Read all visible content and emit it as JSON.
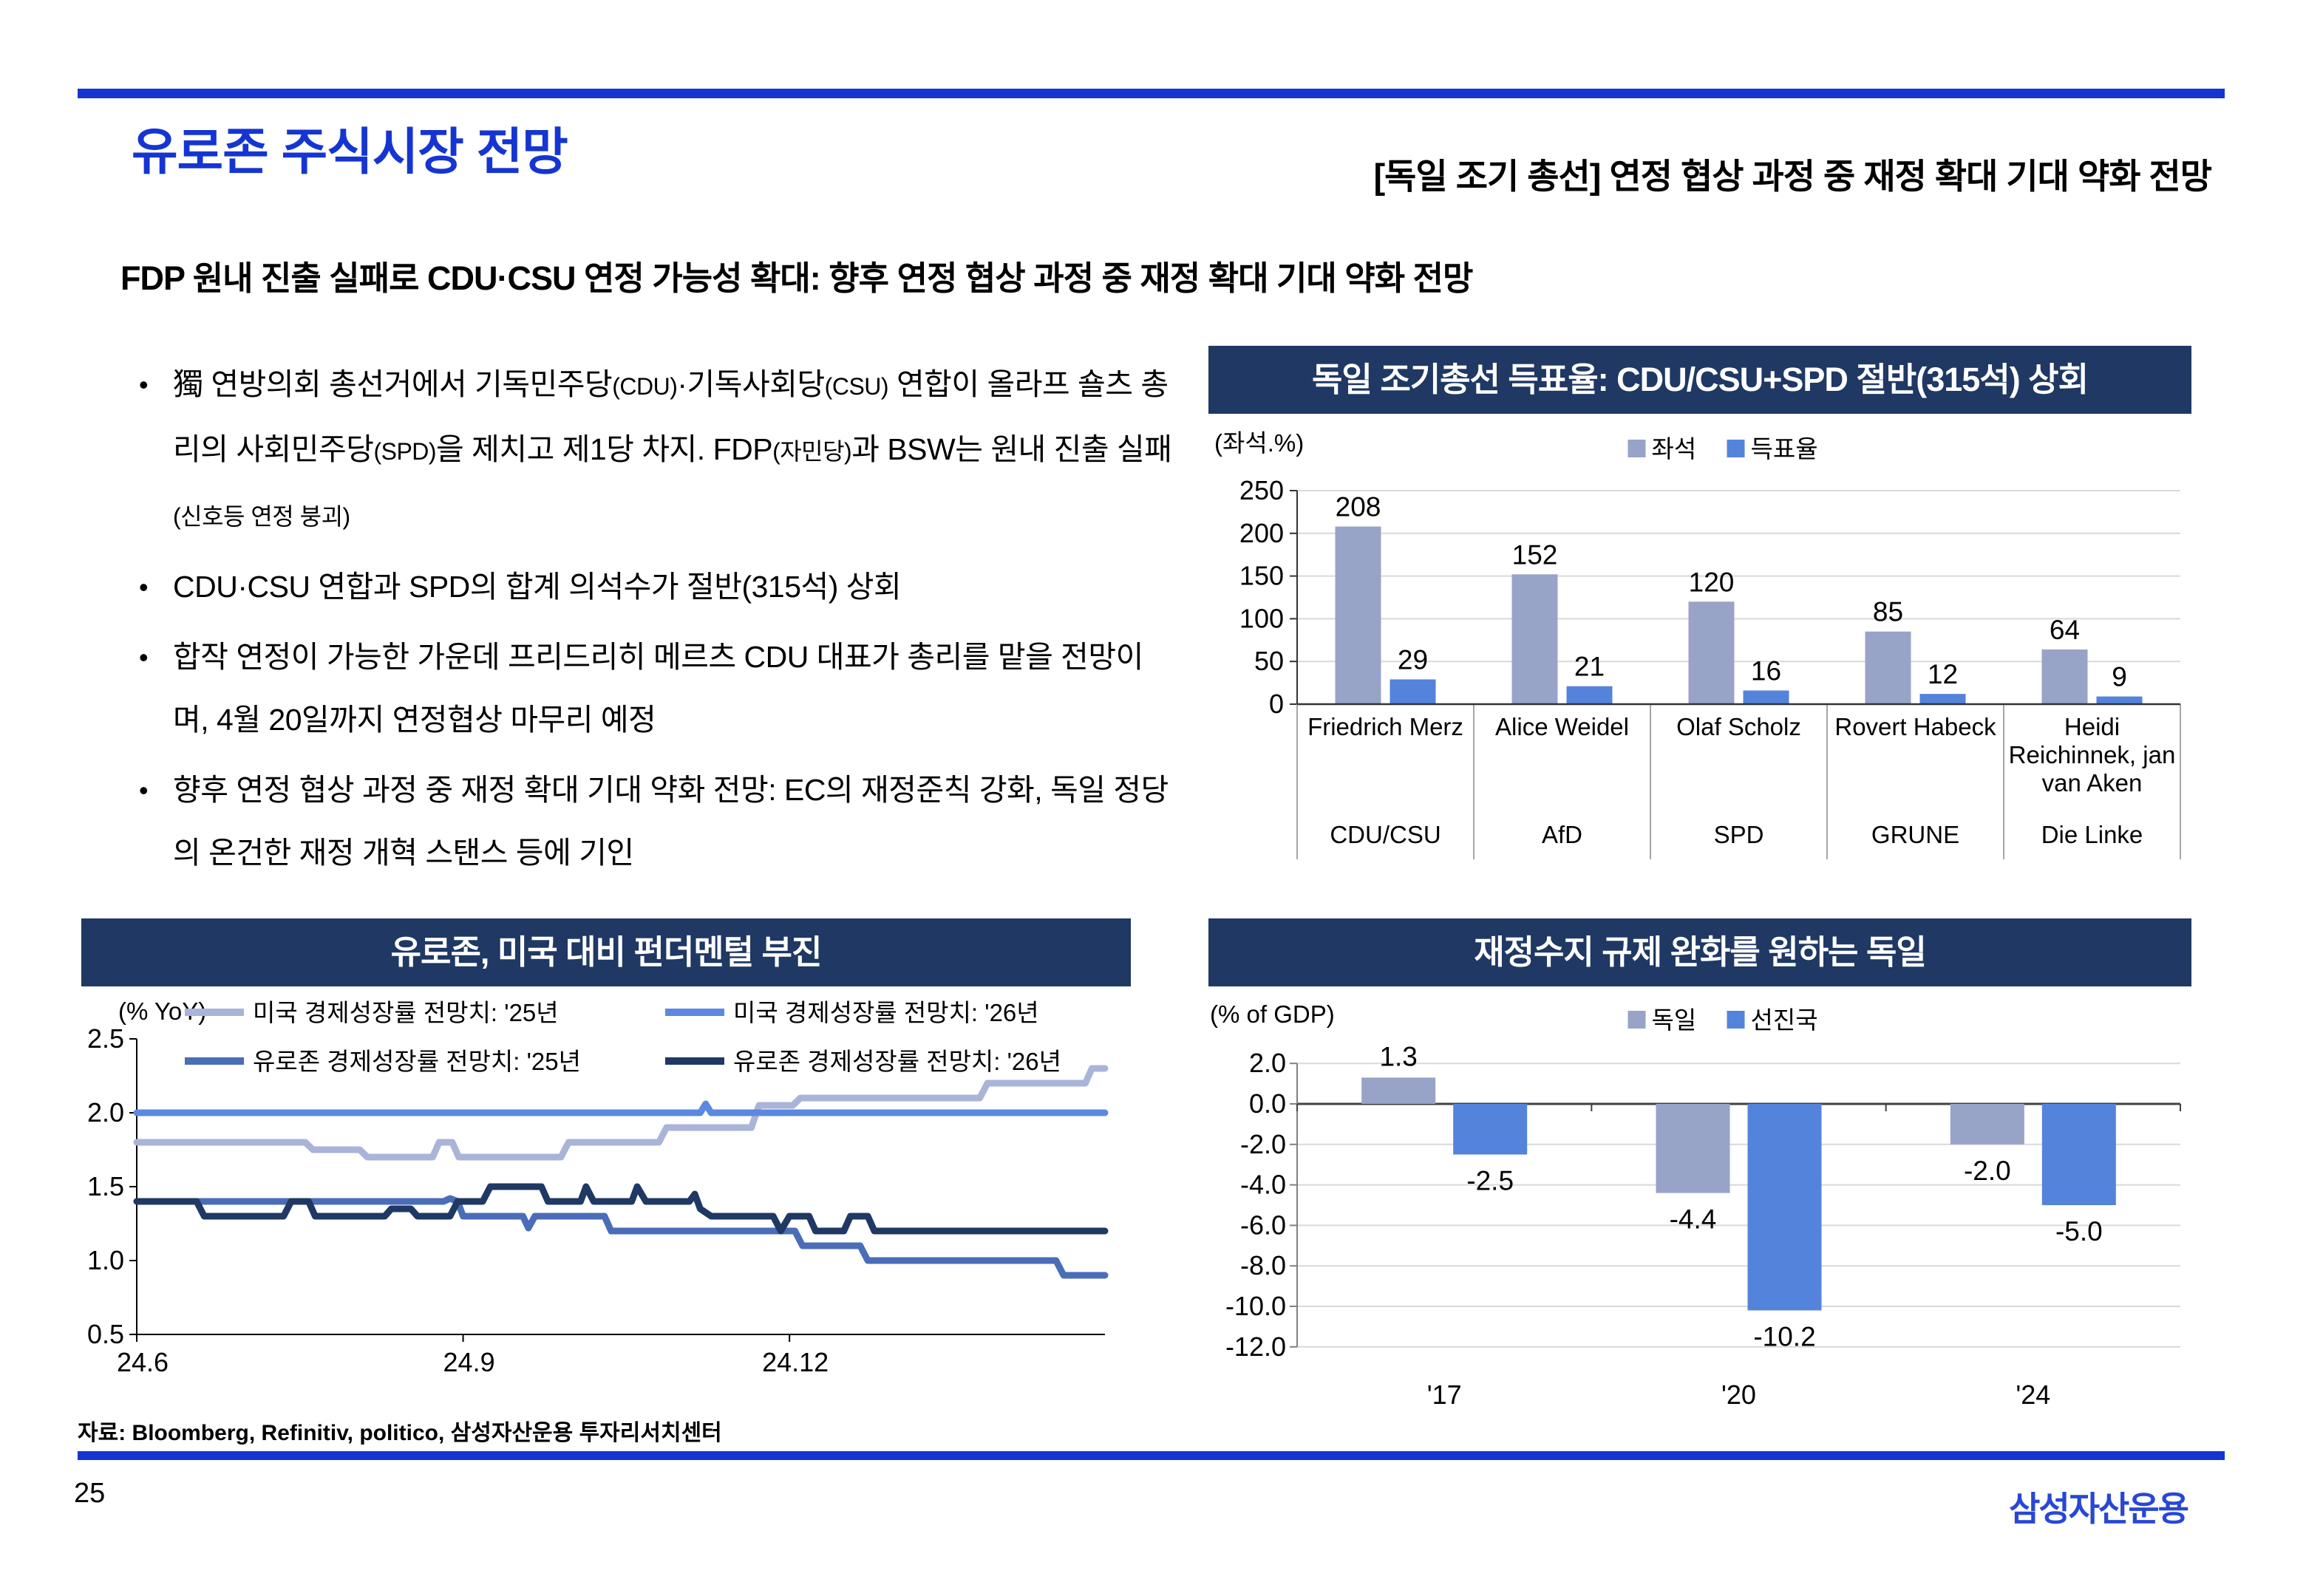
{
  "page": {
    "title": "유로존 주식시장 전망",
    "right_header": "[독일 조기 총선] 연정 협상 과정 중 재정 확대 기대 약화 전망",
    "subtitle": "FDP 원내 진출 실패로 CDU·CSU 연정 가능성 확대: 향후 연정 협상 과정 중 재정 확대 기대 약화 전망",
    "source": "자료: Bloomberg, Refinitiv, politico, 삼성자산운용 투자리서치센터",
    "page_number": "25",
    "logo": "삼성자산운용"
  },
  "colors": {
    "brand_blue": "#1535D2",
    "navy_header": "#1F3864",
    "bar_gray": "#98A3C8",
    "bar_blue": "#5483DB",
    "line_lavender": "#A9B4D8",
    "line_blue": "#5B88E0",
    "line_slate": "#4A6DB8",
    "line_navy": "#1F3864",
    "grid": "#D9D9D9",
    "axis_dark": "#333333",
    "table_border": "#A6A6A6",
    "logo_blue": "#2847D6"
  },
  "bullets": [
    {
      "segments": [
        {
          "text": "獨 연방의회 총선거에서 기독민주당",
          "small": false
        },
        {
          "text": "(CDU)",
          "small": true
        },
        {
          "text": "·기독사회당",
          "small": false
        },
        {
          "text": "(CSU)",
          "small": true
        },
        {
          "text": " 연합이 올라프 숄츠 총리의 사회민주당",
          "small": false
        },
        {
          "text": "(SPD)",
          "small": true
        },
        {
          "text": "을 제치고 제1당 차지. FDP",
          "small": false
        },
        {
          "text": "(자민당)",
          "small": true
        },
        {
          "text": "과 BSW는 원내 진출 실패",
          "small": false
        },
        {
          "text": "(신호등 연정 붕괴)",
          "small": true
        }
      ]
    },
    {
      "segments": [
        {
          "text": "CDU·CSU 연합과 SPD의 합계 의석수가 절반(315석) 상회",
          "small": false
        }
      ]
    },
    {
      "segments": [
        {
          "text": "합작 연정이 가능한 가운데 프리드리히 메르츠 CDU 대표가 총리를 맡을 전망이며, 4월 20일까지 연정협상 마무리 예정",
          "small": false
        }
      ]
    },
    {
      "segments": [
        {
          "text": "향후 연정 협상 과정 중 재정 확대 기대 약화 전망: EC의 재정준칙 강화, 독일 정당의 온건한 재정 개혁 스탠스 등에 기인",
          "small": false
        }
      ]
    }
  ],
  "chart_data": [
    {
      "id": "election",
      "type": "bar",
      "title": "독일 조기총선 득표율: CDU/CSU+SPD 절반(315석) 상회",
      "unit_label": "(좌석.%)",
      "ylim": [
        0,
        250
      ],
      "yticks": [
        0,
        50,
        100,
        150,
        200,
        250
      ],
      "categories": [
        {
          "leader": "Friedrich Merz",
          "leader_lines": [
            "Friedrich Merz"
          ],
          "party": "CDU/CSU"
        },
        {
          "leader": "Alice Weidel",
          "leader_lines": [
            "Alice Weidel"
          ],
          "party": "AfD"
        },
        {
          "leader": "Olaf Scholz",
          "leader_lines": [
            "Olaf Scholz"
          ],
          "party": "SPD"
        },
        {
          "leader": "Rovert Habeck",
          "leader_lines": [
            "Rovert Habeck"
          ],
          "party": "GRUNE"
        },
        {
          "leader": "Heidi Reichinnek, jan van Aken",
          "leader_lines": [
            "Heidi",
            "Reichinnek, jan",
            "van Aken"
          ],
          "party": "Die Linke"
        }
      ],
      "series": [
        {
          "name": "좌석",
          "color_key": "bar_gray",
          "values": [
            208,
            152,
            120,
            85,
            64
          ]
        },
        {
          "name": "득표율",
          "color_key": "bar_blue",
          "values": [
            29,
            21,
            16,
            12,
            9
          ]
        }
      ],
      "legend_position": "top-center",
      "grid": true
    },
    {
      "id": "growth",
      "type": "line",
      "title": "유로존, 미국 대비 펀더멘털 부진",
      "unit_label": "(% YoY)",
      "ylim": [
        0.5,
        2.5
      ],
      "yticks": [
        0.5,
        1.0,
        1.5,
        2.0,
        2.5
      ],
      "xlim": [
        0,
        8.9
      ],
      "xticks": [
        {
          "label": "24.6",
          "x": 0
        },
        {
          "label": "24.9",
          "x": 3
        },
        {
          "label": "24.12",
          "x": 6
        }
      ],
      "grid": false,
      "legend_position": "top",
      "series": [
        {
          "name": "미국 경제성장률 전망치: '25년",
          "color_key": "line_lavender",
          "points": [
            [
              0,
              1.8
            ],
            [
              1.55,
              1.8
            ],
            [
              1.62,
              1.75
            ],
            [
              2.05,
              1.75
            ],
            [
              2.12,
              1.7
            ],
            [
              2.72,
              1.7
            ],
            [
              2.78,
              1.8
            ],
            [
              2.9,
              1.8
            ],
            [
              2.96,
              1.7
            ],
            [
              3.9,
              1.7
            ],
            [
              3.97,
              1.8
            ],
            [
              4.8,
              1.8
            ],
            [
              4.87,
              1.9
            ],
            [
              5.65,
              1.9
            ],
            [
              5.72,
              2.05
            ],
            [
              6.03,
              2.05
            ],
            [
              6.1,
              2.1
            ],
            [
              7.75,
              2.1
            ],
            [
              7.82,
              2.2
            ],
            [
              8.72,
              2.2
            ],
            [
              8.78,
              2.3
            ],
            [
              8.9,
              2.3
            ]
          ]
        },
        {
          "name": "미국 경제성장률 전망치: '26년",
          "color_key": "line_blue",
          "points": [
            [
              0,
              2.0
            ],
            [
              5.18,
              2.0
            ],
            [
              5.23,
              2.06
            ],
            [
              5.28,
              2.0
            ],
            [
              8.9,
              2.0
            ]
          ]
        },
        {
          "name": "유로존 경제성장률 전망치: '25년",
          "color_key": "line_slate",
          "points": [
            [
              0,
              1.4
            ],
            [
              2.82,
              1.4
            ],
            [
              2.88,
              1.42
            ],
            [
              2.95,
              1.4
            ],
            [
              3.0,
              1.3
            ],
            [
              3.55,
              1.3
            ],
            [
              3.6,
              1.22
            ],
            [
              3.66,
              1.3
            ],
            [
              4.3,
              1.3
            ],
            [
              4.36,
              1.2
            ],
            [
              6.05,
              1.2
            ],
            [
              6.12,
              1.1
            ],
            [
              6.65,
              1.1
            ],
            [
              6.72,
              1.0
            ],
            [
              8.45,
              1.0
            ],
            [
              8.52,
              0.9
            ],
            [
              8.9,
              0.9
            ]
          ]
        },
        {
          "name": "유로존 경제성장률 전망치: '26년",
          "color_key": "line_navy",
          "points": [
            [
              0,
              1.4
            ],
            [
              0.55,
              1.4
            ],
            [
              0.62,
              1.3
            ],
            [
              1.35,
              1.3
            ],
            [
              1.42,
              1.4
            ],
            [
              1.58,
              1.4
            ],
            [
              1.64,
              1.3
            ],
            [
              2.28,
              1.3
            ],
            [
              2.34,
              1.35
            ],
            [
              2.52,
              1.35
            ],
            [
              2.58,
              1.3
            ],
            [
              2.88,
              1.3
            ],
            [
              2.95,
              1.4
            ],
            [
              3.18,
              1.4
            ],
            [
              3.25,
              1.5
            ],
            [
              3.72,
              1.5
            ],
            [
              3.78,
              1.4
            ],
            [
              4.08,
              1.4
            ],
            [
              4.13,
              1.5
            ],
            [
              4.2,
              1.4
            ],
            [
              4.55,
              1.4
            ],
            [
              4.6,
              1.5
            ],
            [
              4.68,
              1.4
            ],
            [
              5.08,
              1.4
            ],
            [
              5.13,
              1.45
            ],
            [
              5.18,
              1.35
            ],
            [
              5.28,
              1.3
            ],
            [
              5.85,
              1.3
            ],
            [
              5.92,
              1.2
            ],
            [
              6.0,
              1.3
            ],
            [
              6.18,
              1.3
            ],
            [
              6.24,
              1.2
            ],
            [
              6.5,
              1.2
            ],
            [
              6.56,
              1.3
            ],
            [
              6.72,
              1.3
            ],
            [
              6.78,
              1.2
            ],
            [
              8.9,
              1.2
            ]
          ]
        }
      ],
      "draw_order": [
        0,
        2,
        3,
        1
      ]
    },
    {
      "id": "fiscal",
      "type": "bar",
      "title": "재정수지 규제 완화를 원하는 독일",
      "unit_label": "(% of GDP)",
      "ylim": [
        -12.0,
        2.0
      ],
      "yticks": [
        2.0,
        0.0,
        -2.0,
        -4.0,
        -6.0,
        -8.0,
        -10.0,
        -12.0
      ],
      "categories": [
        "'17",
        "'20",
        "'24"
      ],
      "series": [
        {
          "name": "독일",
          "color_key": "bar_gray",
          "values": [
            1.3,
            -4.4,
            -2.0
          ]
        },
        {
          "name": "선진국",
          "color_key": "bar_blue",
          "values": [
            -2.5,
            -10.2,
            -5.0
          ]
        }
      ],
      "legend_position": "top-center",
      "grid": true
    }
  ]
}
